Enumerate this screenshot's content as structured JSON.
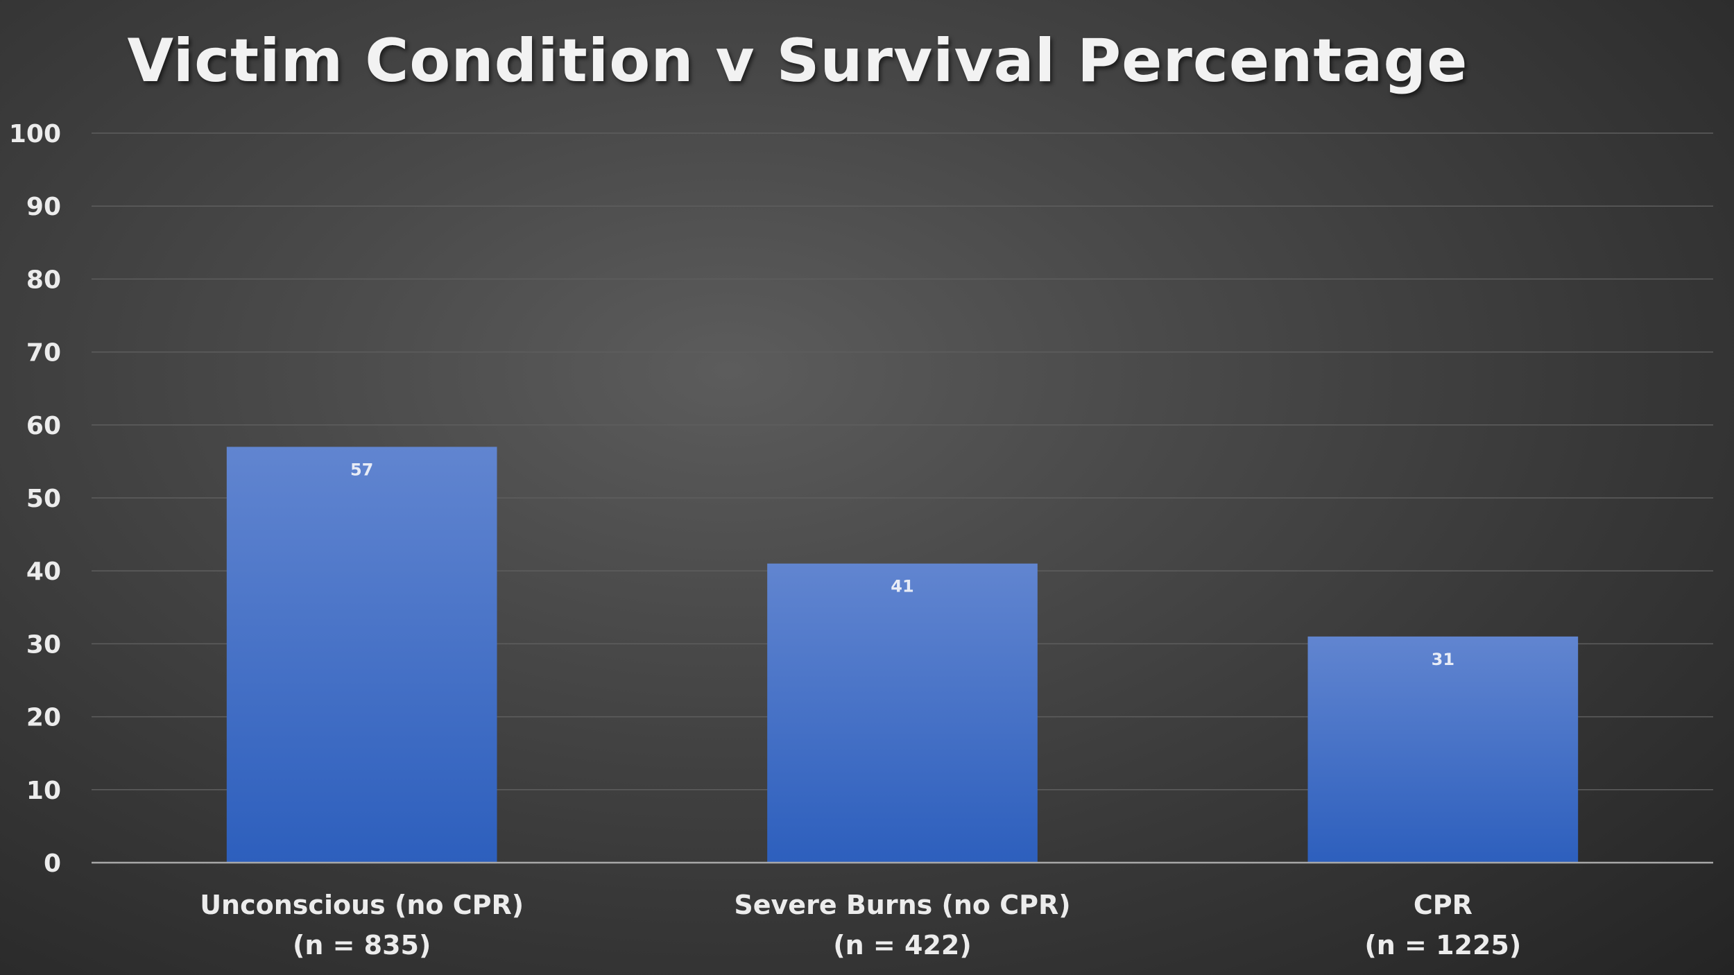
{
  "chart_data": {
    "type": "bar",
    "title": "Victim Condition v Survival Percentage",
    "xlabel": "",
    "ylabel": "",
    "categories": [
      [
        "Unconscious (no CPR)",
        "(n = 835)"
      ],
      [
        "Severe Burns (no CPR)",
        "(n = 422)"
      ],
      [
        "CPR",
        "(n = 1225)"
      ]
    ],
    "values": [
      57,
      41,
      31
    ],
    "data_labels": [
      "57",
      "41",
      "31"
    ],
    "ylim": [
      0,
      100
    ],
    "yticks": [
      0,
      10,
      20,
      30,
      40,
      50,
      60,
      70,
      80,
      90,
      100
    ],
    "grid": true,
    "legend": "none",
    "colors": {
      "bar_top": "#6185d0",
      "bar_bottom": "#2d5fbd",
      "background": "#3a3a3a",
      "text": "#ececec"
    }
  }
}
